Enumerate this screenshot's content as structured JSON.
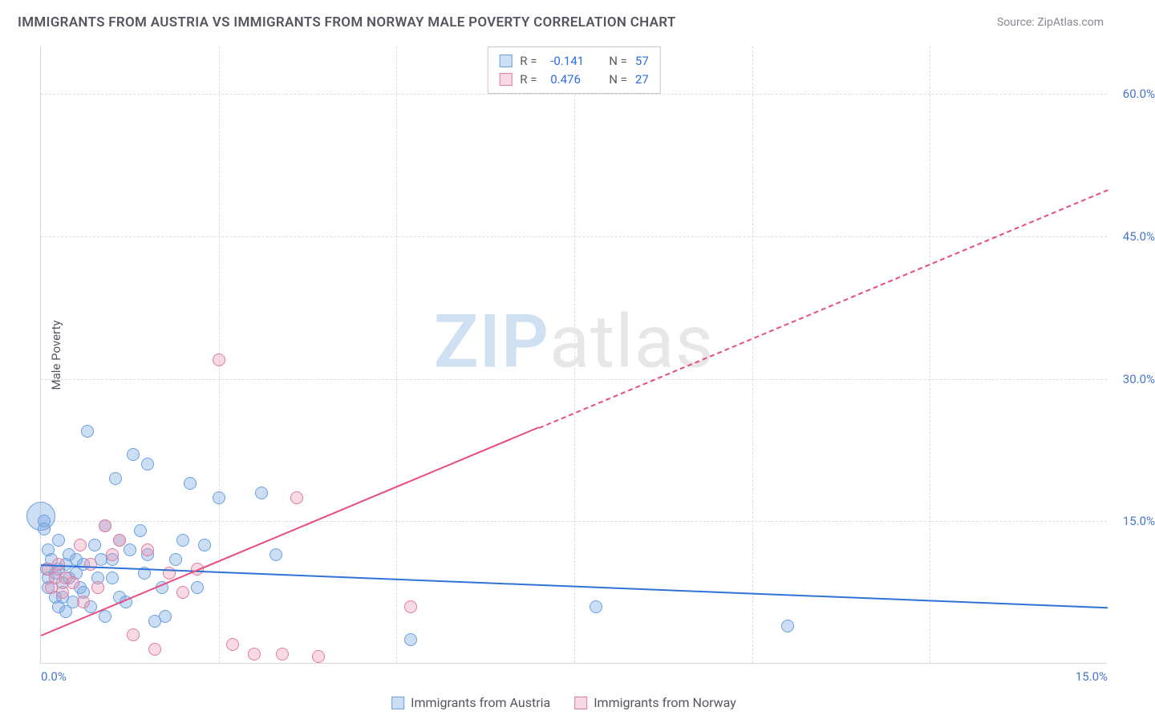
{
  "title": "IMMIGRANTS FROM AUSTRIA VS IMMIGRANTS FROM NORWAY MALE POVERTY CORRELATION CHART",
  "source": "Source: ZipAtlas.com",
  "ylabel": "Male Poverty",
  "watermark": {
    "part1": "ZIP",
    "part2": "atlas"
  },
  "chart": {
    "type": "scatter",
    "background_color": "#ffffff",
    "grid_color": "#dcdce0",
    "axis_color": "#d9d9dd",
    "tick_color": "#4676c9",
    "tick_fontsize": 15,
    "xlim": [
      0,
      15
    ],
    "ylim": [
      0,
      65
    ],
    "xticks": [
      {
        "v": 0,
        "label": "0.0%"
      },
      {
        "v": 15,
        "label": "15.0%"
      }
    ],
    "yticks": [
      {
        "v": 15,
        "label": "15.0%"
      },
      {
        "v": 30,
        "label": "30.0%"
      },
      {
        "v": 45,
        "label": "45.0%"
      },
      {
        "v": 60,
        "label": "60.0%"
      }
    ],
    "vgrid_x": [
      2.5,
      5.0,
      7.5,
      10.0,
      12.5
    ],
    "point_radius": 8,
    "point_stroke_width": 1,
    "series": [
      {
        "key": "austria",
        "label": "Immigrants from Austria",
        "fill": "rgba(121,169,227,0.38)",
        "stroke": "#6b9fe0",
        "R": "-0.141",
        "N": "57",
        "trend": {
          "x1": 0,
          "y1": 10.5,
          "x2": 15,
          "y2": 6.0,
          "color": "#2f72d6",
          "width": 2,
          "solid_until_x": 15
        },
        "points": [
          [
            0.05,
            15.0
          ],
          [
            0.05,
            14.2
          ],
          [
            0.08,
            10.0
          ],
          [
            0.1,
            9.0
          ],
          [
            0.1,
            8.0
          ],
          [
            0.1,
            12.0
          ],
          [
            0.15,
            11.0
          ],
          [
            0.2,
            7.0
          ],
          [
            0.2,
            9.5
          ],
          [
            0.25,
            6.0
          ],
          [
            0.25,
            10.0
          ],
          [
            0.25,
            13.0
          ],
          [
            0.3,
            8.5
          ],
          [
            0.3,
            7.0
          ],
          [
            0.35,
            10.5
          ],
          [
            0.35,
            5.5
          ],
          [
            0.4,
            9.0
          ],
          [
            0.4,
            11.5
          ],
          [
            0.45,
            6.5
          ],
          [
            0.5,
            9.5
          ],
          [
            0.5,
            11.0
          ],
          [
            0.55,
            8.0
          ],
          [
            0.6,
            10.5
          ],
          [
            0.6,
            7.5
          ],
          [
            0.65,
            24.5
          ],
          [
            0.7,
            6.0
          ],
          [
            0.75,
            12.5
          ],
          [
            0.8,
            9.0
          ],
          [
            0.85,
            11.0
          ],
          [
            0.9,
            5.0
          ],
          [
            0.9,
            14.5
          ],
          [
            1.0,
            11.0
          ],
          [
            1.0,
            9.0
          ],
          [
            1.05,
            19.5
          ],
          [
            1.1,
            7.0
          ],
          [
            1.1,
            13.0
          ],
          [
            1.2,
            6.5
          ],
          [
            1.25,
            12.0
          ],
          [
            1.3,
            22.0
          ],
          [
            1.4,
            14.0
          ],
          [
            1.45,
            9.5
          ],
          [
            1.5,
            21.0
          ],
          [
            1.5,
            11.5
          ],
          [
            1.6,
            4.5
          ],
          [
            1.7,
            8.0
          ],
          [
            1.75,
            5.0
          ],
          [
            1.9,
            11.0
          ],
          [
            2.0,
            13.0
          ],
          [
            2.1,
            19.0
          ],
          [
            2.2,
            8.0
          ],
          [
            2.3,
            12.5
          ],
          [
            2.5,
            17.5
          ],
          [
            3.1,
            18.0
          ],
          [
            3.3,
            11.5
          ],
          [
            5.2,
            2.5
          ],
          [
            7.8,
            6.0
          ],
          [
            10.5,
            4.0
          ]
        ],
        "big_points": [
          [
            0.0,
            15.5,
            18
          ]
        ]
      },
      {
        "key": "norway",
        "label": "Immigrants from Norway",
        "fill": "rgba(233,148,175,0.35)",
        "stroke": "#e17ba0",
        "R": "0.476",
        "N": "27",
        "trend": {
          "x1": 0,
          "y1": 3.0,
          "x2": 15,
          "y2": 50.0,
          "color": "#e94b82",
          "width": 2,
          "solid_until_x": 7.0
        },
        "points": [
          [
            0.1,
            10.0
          ],
          [
            0.15,
            8.0
          ],
          [
            0.2,
            9.0
          ],
          [
            0.25,
            10.5
          ],
          [
            0.3,
            7.5
          ],
          [
            0.35,
            9.0
          ],
          [
            0.45,
            8.5
          ],
          [
            0.55,
            12.5
          ],
          [
            0.6,
            6.5
          ],
          [
            0.7,
            10.5
          ],
          [
            0.8,
            8.0
          ],
          [
            0.9,
            14.5
          ],
          [
            1.0,
            11.5
          ],
          [
            1.1,
            13.0
          ],
          [
            1.3,
            3.0
          ],
          [
            1.5,
            12.0
          ],
          [
            1.6,
            1.5
          ],
          [
            1.8,
            9.5
          ],
          [
            2.0,
            7.5
          ],
          [
            2.2,
            10.0
          ],
          [
            2.5,
            32.0
          ],
          [
            2.7,
            2.0
          ],
          [
            3.0,
            1.0
          ],
          [
            3.4,
            1.0
          ],
          [
            3.6,
            17.5
          ],
          [
            3.9,
            0.8
          ],
          [
            5.2,
            6.0
          ]
        ]
      }
    ]
  },
  "legend_top": {
    "r_label": "R =",
    "n_label": "N ="
  }
}
